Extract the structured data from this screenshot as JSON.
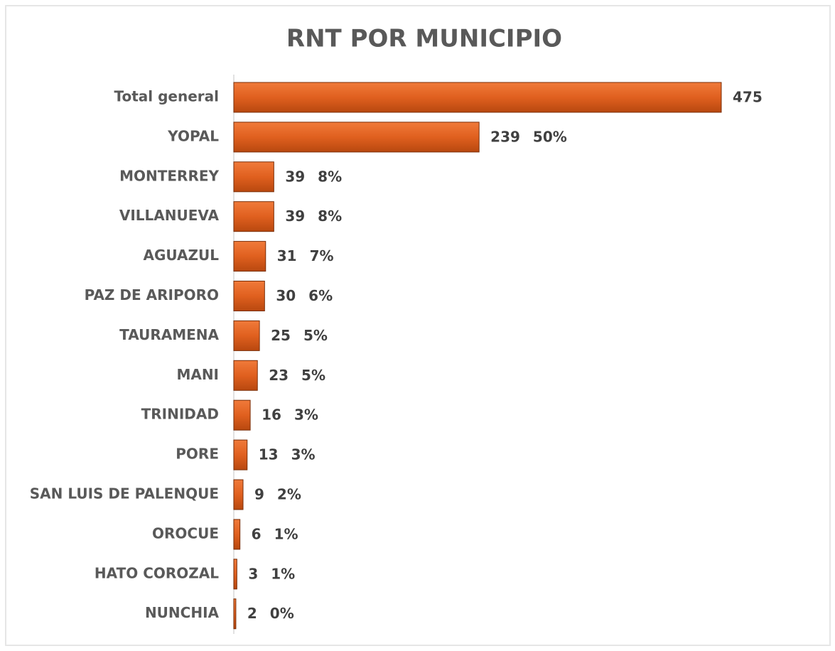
{
  "chart_data": {
    "type": "bar",
    "orientation": "horizontal",
    "title": "RNT POR MUNICIPIO",
    "categories": [
      "Total general",
      "YOPAL",
      "MONTERREY",
      "VILLANUEVA",
      "AGUAZUL",
      "PAZ DE ARIPORO",
      "TAURAMENA",
      "MANI",
      "TRINIDAD",
      "PORE",
      "SAN LUIS DE PALENQUE",
      "OROCUE",
      "HATO COROZAL",
      "NUNCHIA"
    ],
    "values": [
      475,
      239,
      39,
      39,
      31,
      30,
      25,
      23,
      16,
      13,
      9,
      6,
      3,
      2
    ],
    "share_labels": [
      null,
      "50%",
      "8%",
      "8%",
      "7%",
      "6%",
      "5%",
      "5%",
      "3%",
      "3%",
      "2%",
      "1%",
      "1%",
      "0%"
    ],
    "color": "#e0601f"
  }
}
